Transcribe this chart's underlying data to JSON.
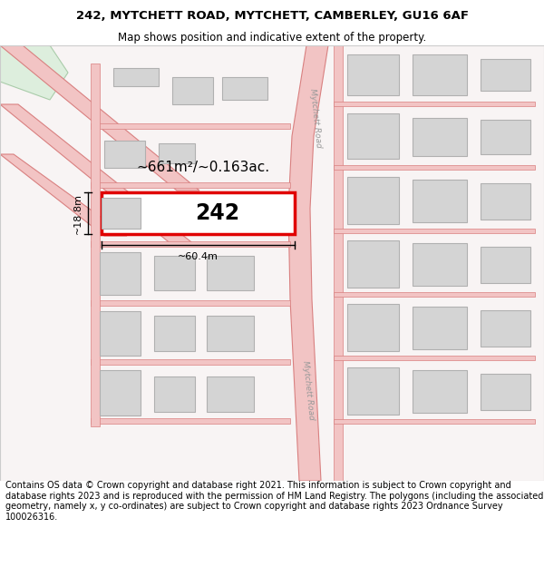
{
  "title_line1": "242, MYTCHETT ROAD, MYTCHETT, CAMBERLEY, GU16 6AF",
  "title_line2": "Map shows position and indicative extent of the property.",
  "footer_text": "Contains OS data © Crown copyright and database right 2021. This information is subject to Crown copyright and database rights 2023 and is reproduced with the permission of HM Land Registry. The polygons (including the associated geometry, namely x, y co-ordinates) are subject to Crown copyright and database rights 2023 Ordnance Survey 100026316.",
  "area_label": "~661m²/~0.163ac.",
  "width_label": "~60.4m",
  "height_label": "~18.8m",
  "plot_number": "242",
  "map_bg": "#ffffff",
  "road_fill": "#f2c4c4",
  "road_edge": "#d98080",
  "building_fill": "#d4d4d4",
  "building_edge": "#b0b0b0",
  "plot_fill": "#ffffff",
  "plot_edge": "#e00000",
  "road_label_color": "#999999",
  "green_fill": "#ddeedd",
  "green_edge": "#aaccaa",
  "title_fontsize": 9.5,
  "subtitle_fontsize": 8.5,
  "footer_fontsize": 7.0,
  "map_facecolor": "#f5f0f0"
}
